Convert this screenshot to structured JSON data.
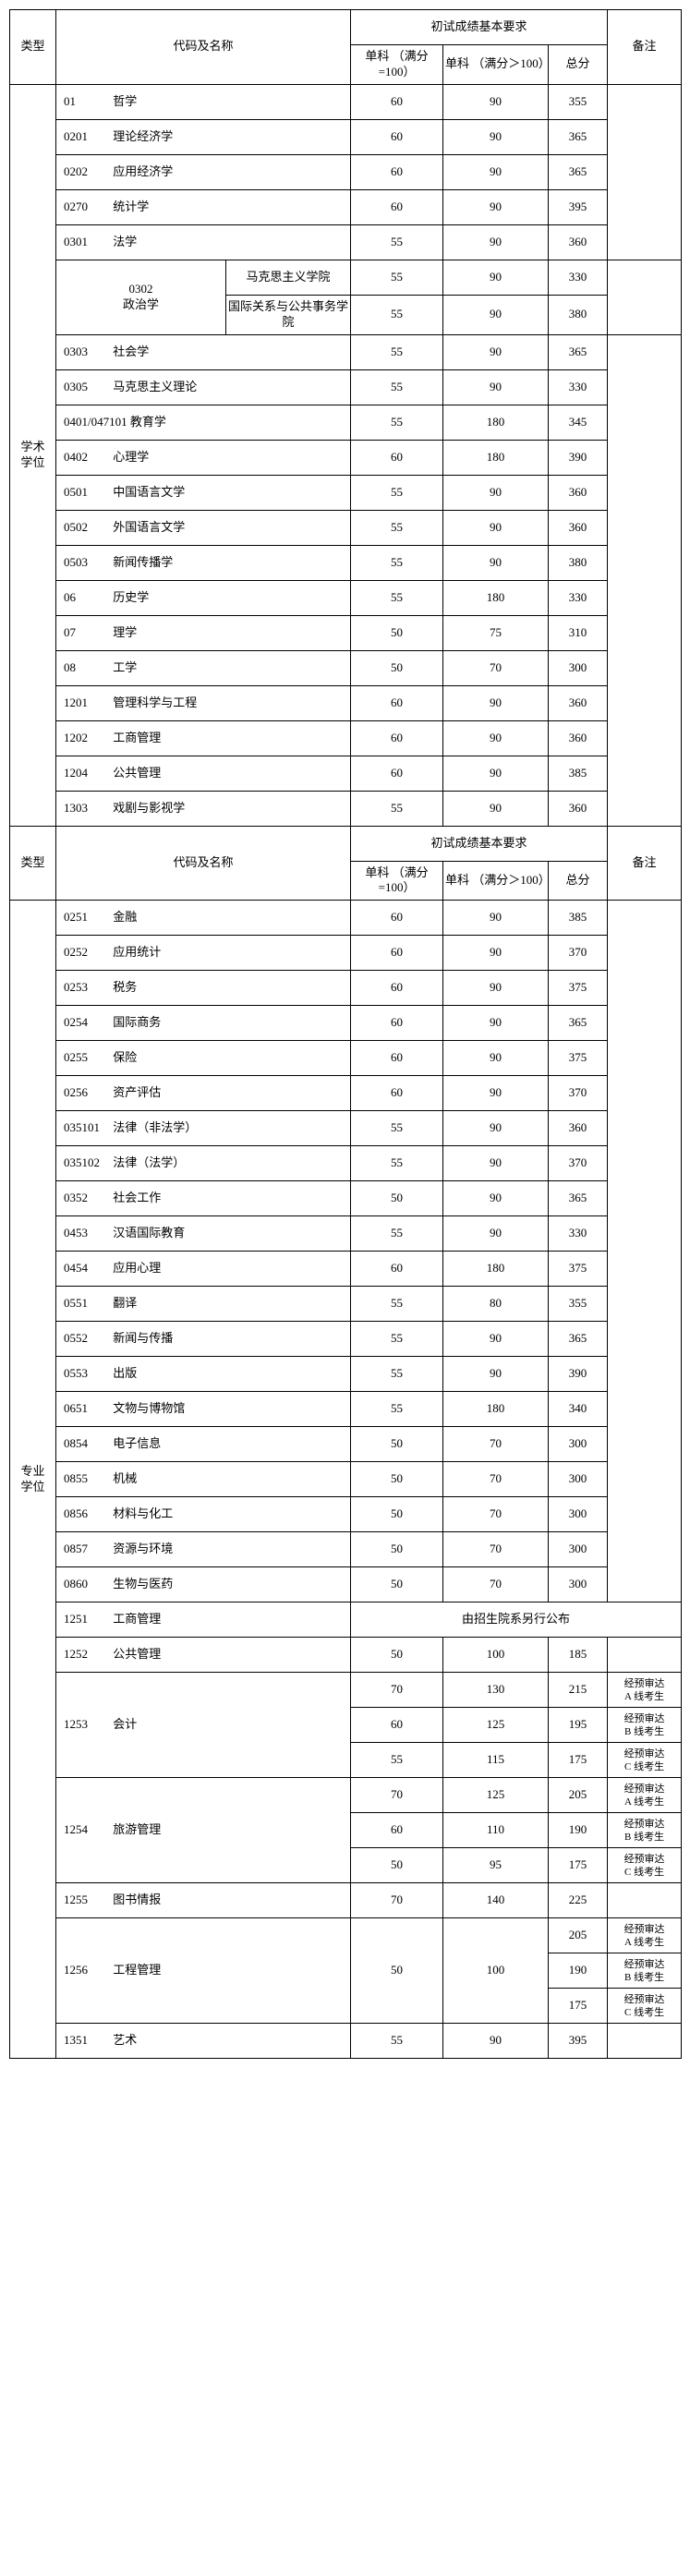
{
  "headers": {
    "type": "类型",
    "codeName": "代码及名称",
    "initReq": "初试成绩基本要求",
    "single100": "单科\n（满分=100）",
    "single100p": "单科\n（满分＞100）",
    "total": "总分",
    "remark": "备注"
  },
  "sectionA": {
    "typeLabel": "学术\n学位",
    "rows": [
      {
        "code": "01",
        "name": "哲学",
        "s1": "60",
        "s2": "90",
        "tot": "355"
      },
      {
        "code": "0201",
        "name": "理论经济学",
        "s1": "60",
        "s2": "90",
        "tot": "365"
      },
      {
        "code": "0202",
        "name": "应用经济学",
        "s1": "60",
        "s2": "90",
        "tot": "365"
      },
      {
        "code": "0270",
        "name": "统计学",
        "s1": "60",
        "s2": "90",
        "tot": "395"
      },
      {
        "code": "0301",
        "name": "法学",
        "s1": "55",
        "s2": "90",
        "tot": "360"
      },
      {
        "code": "0302\n政治学",
        "sub": "马克思主义学院",
        "s1": "55",
        "s2": "90",
        "tot": "330",
        "split": true,
        "first": true
      },
      {
        "sub": "国际关系与公共事务学院",
        "s1": "55",
        "s2": "90",
        "tot": "380",
        "split": true,
        "first": false
      },
      {
        "code": "0303",
        "name": "社会学",
        "s1": "55",
        "s2": "90",
        "tot": "365"
      },
      {
        "code": "0305",
        "name": "马克思主义理论",
        "s1": "55",
        "s2": "90",
        "tot": "330"
      },
      {
        "code": "0401/047101",
        "name": "教育学",
        "s1": "55",
        "s2": "180",
        "tot": "345"
      },
      {
        "code": "0402",
        "name": "心理学",
        "s1": "60",
        "s2": "180",
        "tot": "390"
      },
      {
        "code": "0501",
        "name": "中国语言文学",
        "s1": "55",
        "s2": "90",
        "tot": "360"
      },
      {
        "code": "0502",
        "name": "外国语言文学",
        "s1": "55",
        "s2": "90",
        "tot": "360"
      },
      {
        "code": "0503",
        "name": "新闻传播学",
        "s1": "55",
        "s2": "90",
        "tot": "380"
      },
      {
        "code": "06",
        "name": "历史学",
        "s1": "55",
        "s2": "180",
        "tot": "330"
      },
      {
        "code": "07",
        "name": "理学",
        "s1": "50",
        "s2": "75",
        "tot": "310"
      },
      {
        "code": "08",
        "name": "工学",
        "s1": "50",
        "s2": "70",
        "tot": "300"
      },
      {
        "code": "1201",
        "name": "管理科学与工程",
        "s1": "60",
        "s2": "90",
        "tot": "360"
      },
      {
        "code": "1202",
        "name": "工商管理",
        "s1": "60",
        "s2": "90",
        "tot": "360"
      },
      {
        "code": "1204",
        "name": "公共管理",
        "s1": "60",
        "s2": "90",
        "tot": "385"
      },
      {
        "code": "1303",
        "name": "戏剧与影视学",
        "s1": "55",
        "s2": "90",
        "tot": "360"
      }
    ]
  },
  "sectionB": {
    "typeLabel": "专业\n学位",
    "simpleRows": [
      {
        "code": "0251",
        "name": "金融",
        "s1": "60",
        "s2": "90",
        "tot": "385"
      },
      {
        "code": "0252",
        "name": "应用统计",
        "s1": "60",
        "s2": "90",
        "tot": "370"
      },
      {
        "code": "0253",
        "name": "税务",
        "s1": "60",
        "s2": "90",
        "tot": "375"
      },
      {
        "code": "0254",
        "name": "国际商务",
        "s1": "60",
        "s2": "90",
        "tot": "365"
      },
      {
        "code": "0255",
        "name": "保险",
        "s1": "60",
        "s2": "90",
        "tot": "375"
      },
      {
        "code": "0256",
        "name": "资产评估",
        "s1": "60",
        "s2": "90",
        "tot": "370"
      },
      {
        "code": "035101",
        "name": "法律（非法学）",
        "s1": "55",
        "s2": "90",
        "tot": "360"
      },
      {
        "code": "035102",
        "name": "法律（法学）",
        "s1": "55",
        "s2": "90",
        "tot": "370"
      },
      {
        "code": "0352",
        "name": "社会工作",
        "s1": "50",
        "s2": "90",
        "tot": "365"
      },
      {
        "code": "0453",
        "name": "汉语国际教育",
        "s1": "55",
        "s2": "90",
        "tot": "330"
      },
      {
        "code": "0454",
        "name": "应用心理",
        "s1": "60",
        "s2": "180",
        "tot": "375"
      },
      {
        "code": "0551",
        "name": "翻译",
        "s1": "55",
        "s2": "80",
        "tot": "355"
      },
      {
        "code": "0552",
        "name": "新闻与传播",
        "s1": "55",
        "s2": "90",
        "tot": "365"
      },
      {
        "code": "0553",
        "name": "出版",
        "s1": "55",
        "s2": "90",
        "tot": "390"
      },
      {
        "code": "0651",
        "name": "文物与博物馆",
        "s1": "55",
        "s2": "180",
        "tot": "340"
      },
      {
        "code": "0854",
        "name": "电子信息",
        "s1": "50",
        "s2": "70",
        "tot": "300"
      },
      {
        "code": "0855",
        "name": "机械",
        "s1": "50",
        "s2": "70",
        "tot": "300"
      },
      {
        "code": "0856",
        "name": "材料与化工",
        "s1": "50",
        "s2": "70",
        "tot": "300"
      },
      {
        "code": "0857",
        "name": "资源与环境",
        "s1": "50",
        "s2": "70",
        "tot": "300"
      },
      {
        "code": "0860",
        "name": "生物与医药",
        "s1": "50",
        "s2": "70",
        "tot": "300"
      }
    ],
    "r1251": {
      "code": "1251",
      "name": "工商管理",
      "merged": "由招生院系另行公布"
    },
    "r1252": {
      "code": "1252",
      "name": "公共管理",
      "s1": "50",
      "s2": "100",
      "tot": "185"
    },
    "r1253": {
      "code": "1253",
      "name": "会计",
      "lines": [
        {
          "s1": "70",
          "s2": "130",
          "tot": "215",
          "rm": "经预审达\nA 线考生"
        },
        {
          "s1": "60",
          "s2": "125",
          "tot": "195",
          "rm": "经预审达\nB 线考生"
        },
        {
          "s1": "55",
          "s2": "115",
          "tot": "175",
          "rm": "经预审达\nC 线考生"
        }
      ]
    },
    "r1254": {
      "code": "1254",
      "name": "旅游管理",
      "lines": [
        {
          "s1": "70",
          "s2": "125",
          "tot": "205",
          "rm": "经预审达\nA 线考生"
        },
        {
          "s1": "60",
          "s2": "110",
          "tot": "190",
          "rm": "经预审达\nB 线考生"
        },
        {
          "s1": "50",
          "s2": "95",
          "tot": "175",
          "rm": "经预审达\nC 线考生"
        }
      ]
    },
    "r1255": {
      "code": "1255",
      "name": "图书情报",
      "s1": "70",
      "s2": "140",
      "tot": "225"
    },
    "r1256": {
      "code": "1256",
      "name": "工程管理",
      "s1": "50",
      "s2": "100",
      "lines": [
        {
          "tot": "205",
          "rm": "经预审达\nA 线考生"
        },
        {
          "tot": "190",
          "rm": "经预审达\nB 线考生"
        },
        {
          "tot": "175",
          "rm": "经预审达\nC 线考生"
        }
      ]
    },
    "r1351": {
      "code": "1351",
      "name": "艺术",
      "s1": "55",
      "s2": "90",
      "tot": "395"
    }
  }
}
